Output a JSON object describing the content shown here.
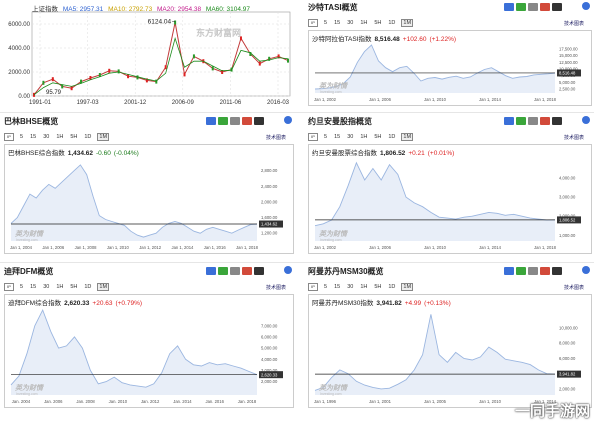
{
  "brand": "一同手游网",
  "colors": {
    "line": "#9bb6e0",
    "fill": "#e8eef8",
    "ref": "#222222",
    "up": "#d22222",
    "down": "#1a7a1a"
  },
  "top_left": {
    "legend": {
      "name": "上证指数",
      "ma5": "MA5: 2957.31",
      "ma10": "MA10: 2792.73",
      "ma20": "MA20: 2954.38",
      "ma60": "MA60: 3104.97"
    },
    "watermark": "东方财富网",
    "chart_data": {
      "type": "line",
      "title": "上证指数",
      "y_ticks": [
        "6000.00",
        "4000.00",
        "2000.00",
        "0.00"
      ],
      "x_ticks": [
        "1991-01",
        "1997-03",
        "2001-12",
        "2006-09",
        "2011-06",
        "2016-03"
      ],
      "ylim": [
        0,
        7000
      ],
      "annotations": [
        {
          "text": "6124.04",
          "x": "2007-10",
          "y": 6124.04
        },
        {
          "text": "95.79",
          "x": "1991-01",
          "y": 95.79
        }
      ],
      "series": [
        {
          "name": "上证指数",
          "values": [
            96,
            1100,
            1400,
            800,
            650,
            1200,
            1500,
            1750,
            2100,
            2050,
            1650,
            1550,
            1300,
            1200,
            2400,
            6124,
            1800,
            3300,
            2900,
            2300,
            2000,
            2200,
            4800,
            3500,
            2700,
            3100,
            3300,
            2950
          ]
        },
        {
          "name": "MA60",
          "values": [
            100,
            700,
            1100,
            950,
            800,
            1050,
            1350,
            1600,
            1900,
            2000,
            1800,
            1600,
            1400,
            1250,
            1900,
            4800,
            2400,
            2900,
            2900,
            2500,
            2100,
            2150,
            3800,
            3600,
            2900,
            3000,
            3200,
            3100
          ]
        }
      ]
    }
  },
  "panels": [
    {
      "title": "沙特TASI概览",
      "ranges": [
        "5",
        "15",
        "30",
        "1H",
        "5H",
        "1D",
        "1M"
      ],
      "active": "1M",
      "tech": "技术图表",
      "index_name": "沙特阿拉伯TASI指数",
      "value": "8,516.48",
      "change": "+102.60",
      "pct": "(+1.22%)",
      "dir": "up",
      "chart_data": {
        "type": "area",
        "y_ticks": [
          "17,500.00",
          "15,000.00",
          "12,500.00",
          "10,000.00",
          "7,500.00",
          "5,000.00",
          "2,500.00"
        ],
        "ylim": [
          1000,
          19000
        ],
        "x_ticks": [
          "Jan 1, 2002",
          "Jan 1, 2006",
          "Jan 1, 2010",
          "Jan 1, 2014",
          "Jan 1, 2018"
        ],
        "current": "8,516.48",
        "reference": 8516.48,
        "values": [
          2500,
          2600,
          2900,
          3500,
          4500,
          7000,
          12500,
          16500,
          19000,
          13000,
          10500,
          9000,
          10500,
          11000,
          8500,
          5500,
          6500,
          6800,
          6200,
          6900,
          7300,
          6500,
          7000,
          8500,
          9800,
          10500,
          9000,
          7500,
          6500,
          7000,
          7200,
          7800,
          8000,
          8200,
          8500
        ]
      }
    },
    {
      "title": "巴林BHSE概览",
      "ranges": [
        "5",
        "15",
        "30",
        "1H",
        "5H",
        "1D",
        "1M"
      ],
      "active": "1M",
      "tech": "技术图表",
      "index_name": "巴林BHSE综合指数",
      "value": "1,434.62",
      "change": "-0.60",
      "pct": "(-0.04%)",
      "dir": "down",
      "chart_data": {
        "type": "area",
        "y_ticks": [
          "2,800.00",
          "2,400.00",
          "2,000.00",
          "1,600.00",
          "1,200.00"
        ],
        "ylim": [
          1000,
          3100
        ],
        "x_ticks": [
          "Jan 1, 2004",
          "Jan 1, 2006",
          "Jan 1, 2008",
          "Jan 1, 2010",
          "Jan 1, 2012",
          "Jan 1, 2014",
          "Jan 1, 2016",
          "Jan 1, 2018"
        ],
        "current": "1,434.62",
        "reference": 1434.62,
        "values": [
          1450,
          1600,
          1900,
          2200,
          2100,
          2300,
          2450,
          2350,
          2500,
          2650,
          2800,
          2950,
          2700,
          2150,
          1650,
          1550,
          1500,
          1450,
          1400,
          1250,
          1150,
          1100,
          1150,
          1200,
          1350,
          1450,
          1500,
          1450,
          1350,
          1250,
          1200,
          1300,
          1350,
          1300,
          1250,
          1200,
          1280,
          1350,
          1420,
          1435
        ]
      }
    },
    {
      "title": "约旦安曼股指概览",
      "ranges": [
        "5",
        "15",
        "30",
        "1H",
        "5H",
        "1D",
        "1M"
      ],
      "active": "1M",
      "tech": "技术图表",
      "index_name": "约旦安曼股票综合指数",
      "value": "1,806.52",
      "change": "+0.21",
      "pct": "(+0.01%)",
      "dir": "up",
      "chart_data": {
        "type": "area",
        "y_ticks": [
          "4,000.00",
          "3,000.00",
          "2,000.00",
          "1,000.00"
        ],
        "ylim": [
          700,
          5000
        ],
        "x_ticks": [
          "Jan 1, 2002",
          "Jan 1, 2006",
          "Jan 1, 2010",
          "Jan 1, 2014",
          "Jan 1, 2018"
        ],
        "current": "1,806.52",
        "reference": 1806.52,
        "values": [
          1500,
          1600,
          1800,
          2500,
          3600,
          4800,
          3900,
          4500,
          3900,
          4700,
          4200,
          3000,
          2700,
          2500,
          2200,
          1950,
          1900,
          1850,
          1950,
          2000,
          2100,
          2200,
          2150,
          2050,
          2100,
          2000,
          1900,
          1850,
          1800,
          1810
        ]
      }
    },
    {
      "title": "迪拜DFM概览",
      "ranges": [
        "5",
        "15",
        "30",
        "1H",
        "5H",
        "1D",
        "1M"
      ],
      "active": "1M",
      "tech": "技术图表",
      "index_name": "迪拜DFM综合指数",
      "value": "2,620.33",
      "change": "+20.63",
      "pct": "(+0.79%)",
      "dir": "up",
      "chart_data": {
        "type": "area",
        "y_ticks": [
          "7,000.00",
          "6,000.00",
          "5,000.00",
          "4,000.00",
          "3,000.00",
          "2,000.00"
        ],
        "ylim": [
          800,
          8500
        ],
        "x_ticks": [
          "Jan. 2004",
          "Jan. 2006",
          "Jan. 2008",
          "Jan. 2010",
          "Jan. 2012",
          "Jan. 2014",
          "Jan. 2016",
          "Jan. 2018"
        ],
        "current": "2,620.33",
        "reference": 2620.33,
        "values": [
          1700,
          2500,
          4500,
          7000,
          8400,
          6500,
          5000,
          5200,
          6000,
          5000,
          3000,
          1800,
          2000,
          2400,
          1900,
          1700,
          1600,
          1500,
          1800,
          2800,
          4500,
          5200,
          4000,
          3500,
          3400,
          3700,
          3500,
          3600,
          3400,
          3200,
          2900,
          2620
        ]
      }
    },
    {
      "title": "阿曼苏丹MSM30概览",
      "ranges": [
        "5",
        "15",
        "30",
        "1H",
        "5H",
        "1D",
        "1M"
      ],
      "active": "1M",
      "tech": "技术图表",
      "index_name": "阿曼苏丹MSM30指数",
      "value": "3,941.82",
      "change": "+4.99",
      "pct": "(+0.13%)",
      "dir": "up",
      "chart_data": {
        "type": "area",
        "y_ticks": [
          "10,000.00",
          "8,000.00",
          "6,000.00",
          "4,000.00",
          "2,000.00"
        ],
        "ylim": [
          1200,
          12500
        ],
        "x_ticks": [
          "Jan 1, 1996",
          "Jan 1, 2001",
          "Jan 1, 2005",
          "Jan 1, 2010",
          "Jan 1, 2014"
        ],
        "current": "3,941.82",
        "reference": 3941.82,
        "values": [
          1800,
          2200,
          3500,
          4500,
          4000,
          3000,
          2500,
          2200,
          2000,
          2100,
          2600,
          3200,
          4500,
          6500,
          11800,
          6500,
          5500,
          6800,
          6000,
          5800,
          6200,
          7500,
          6800,
          5900,
          5700,
          5500,
          5200,
          4500,
          4000,
          3942
        ]
      }
    }
  ]
}
